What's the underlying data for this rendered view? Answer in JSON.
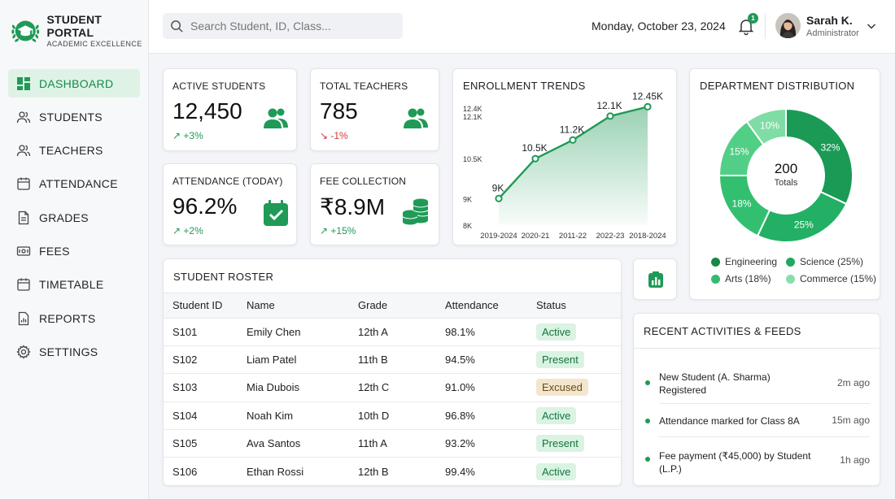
{
  "brand": {
    "title": "STUDENT PORTAL",
    "subtitle": "ACADEMIC EXCELLENCE"
  },
  "nav": [
    {
      "label": "DASHBOARD",
      "icon": "dashboard-icon",
      "active": true
    },
    {
      "label": "STUDENTS",
      "icon": "users-icon"
    },
    {
      "label": "TEACHERS",
      "icon": "users-icon"
    },
    {
      "label": "ATTENDANCE",
      "icon": "calendar-icon"
    },
    {
      "label": "GRADES",
      "icon": "document-icon"
    },
    {
      "label": "FEES",
      "icon": "money-icon"
    },
    {
      "label": "TIMETABLE",
      "icon": "calendar-icon"
    },
    {
      "label": "REPORTS",
      "icon": "report-icon"
    },
    {
      "label": "SETTINGS",
      "icon": "gear-icon"
    }
  ],
  "header": {
    "search_placeholder": "Search Student, ID, Class...",
    "date": "Monday, October 23, 2024",
    "notification_count": "1",
    "user_name": "Sarah K.",
    "user_role": "Administrator"
  },
  "stats": {
    "active_students": {
      "label": "ACTIVE STUDENTS",
      "value": "12,450",
      "delta": "+3%"
    },
    "total_teachers": {
      "label": "TOTAL TEACHERS",
      "value": "785",
      "delta": "-1%"
    },
    "attendance": {
      "label": "ATTENDANCE (TODAY)",
      "value": "96.2%",
      "delta": "+2%"
    },
    "fee_collection": {
      "label": "FEE COLLECTION",
      "value": "₹8.9M",
      "delta": "+15%"
    }
  },
  "enrollment": {
    "title": "ENROLLMENT TRENDS",
    "chart_data": {
      "type": "area",
      "categories": [
        "2019-2024",
        "2020-21",
        "2011-22",
        "2022-23",
        "2018-2024"
      ],
      "values": [
        9000,
        10500,
        11200,
        12100,
        12450
      ],
      "data_labels": [
        "9K",
        "10.5K",
        "11.2K",
        "12.1K",
        "12.45K"
      ],
      "ylim": [
        8000,
        12400
      ],
      "y_ticks": [
        8000,
        9000,
        10500,
        12100,
        12400
      ],
      "y_tick_labels": [
        "8K",
        "9K",
        "10.5K",
        "12.1K",
        "12.4K"
      ],
      "color": "#1f9a57"
    }
  },
  "department": {
    "title": "DEPARTMENT DISTRIBUTION",
    "center_value": "200",
    "center_label": "Totals",
    "chart_data": {
      "type": "pie",
      "slices": [
        {
          "label": "32%",
          "value": 32,
          "color": "#1a9a55"
        },
        {
          "label": "25%",
          "value": 25,
          "color": "#23b064"
        },
        {
          "label": "18%",
          "value": 18,
          "color": "#32c070"
        },
        {
          "label": "15%",
          "value": 15,
          "color": "#52cf86"
        },
        {
          "label": "10%",
          "value": 10,
          "color": "#7fdca5"
        }
      ]
    },
    "legend": [
      {
        "label": "Engineering",
        "color": "#168848"
      },
      {
        "label": "Science (25%)",
        "color": "#21a862"
      },
      {
        "label": "Arts (18%)",
        "color": "#34bb70"
      },
      {
        "label": "Commerce (15%)",
        "color": "#86dfac"
      }
    ]
  },
  "roster": {
    "title": "STUDENT ROSTER",
    "columns": [
      "Student ID",
      "Name",
      "Grade",
      "Attendance",
      "Status"
    ],
    "rows": [
      {
        "id": "S101",
        "name": "Emily Chen",
        "grade": "12th A",
        "attendance": "98.1%",
        "status": "Active",
        "tone": "green"
      },
      {
        "id": "S102",
        "name": "Liam Patel",
        "grade": "11th B",
        "attendance": "94.5%",
        "status": "Present",
        "tone": "green"
      },
      {
        "id": "S103",
        "name": "Mia Dubois",
        "grade": "12th C",
        "attendance": "91.0%",
        "status": "Excused",
        "tone": "amber"
      },
      {
        "id": "S104",
        "name": "Noah Kim",
        "grade": "10th D",
        "attendance": "96.8%",
        "status": "Active",
        "tone": "green"
      },
      {
        "id": "S105",
        "name": "Ava Santos",
        "grade": "11th A",
        "attendance": "93.2%",
        "status": "Present",
        "tone": "green"
      },
      {
        "id": "S106",
        "name": "Ethan Rossi",
        "grade": "12th B",
        "attendance": "99.4%",
        "status": "Active",
        "tone": "green"
      }
    ]
  },
  "activities": {
    "title": "RECENT ACTIVITIES & FEEDS",
    "items": [
      {
        "text": "New Student (A. Sharma) Registered",
        "time": "2m ago"
      },
      {
        "text": "Attendance marked for Class 8A",
        "time": "15m ago"
      },
      {
        "text": "Fee payment (₹45,000) by Student (L.P.)",
        "time": "1h ago"
      }
    ]
  }
}
